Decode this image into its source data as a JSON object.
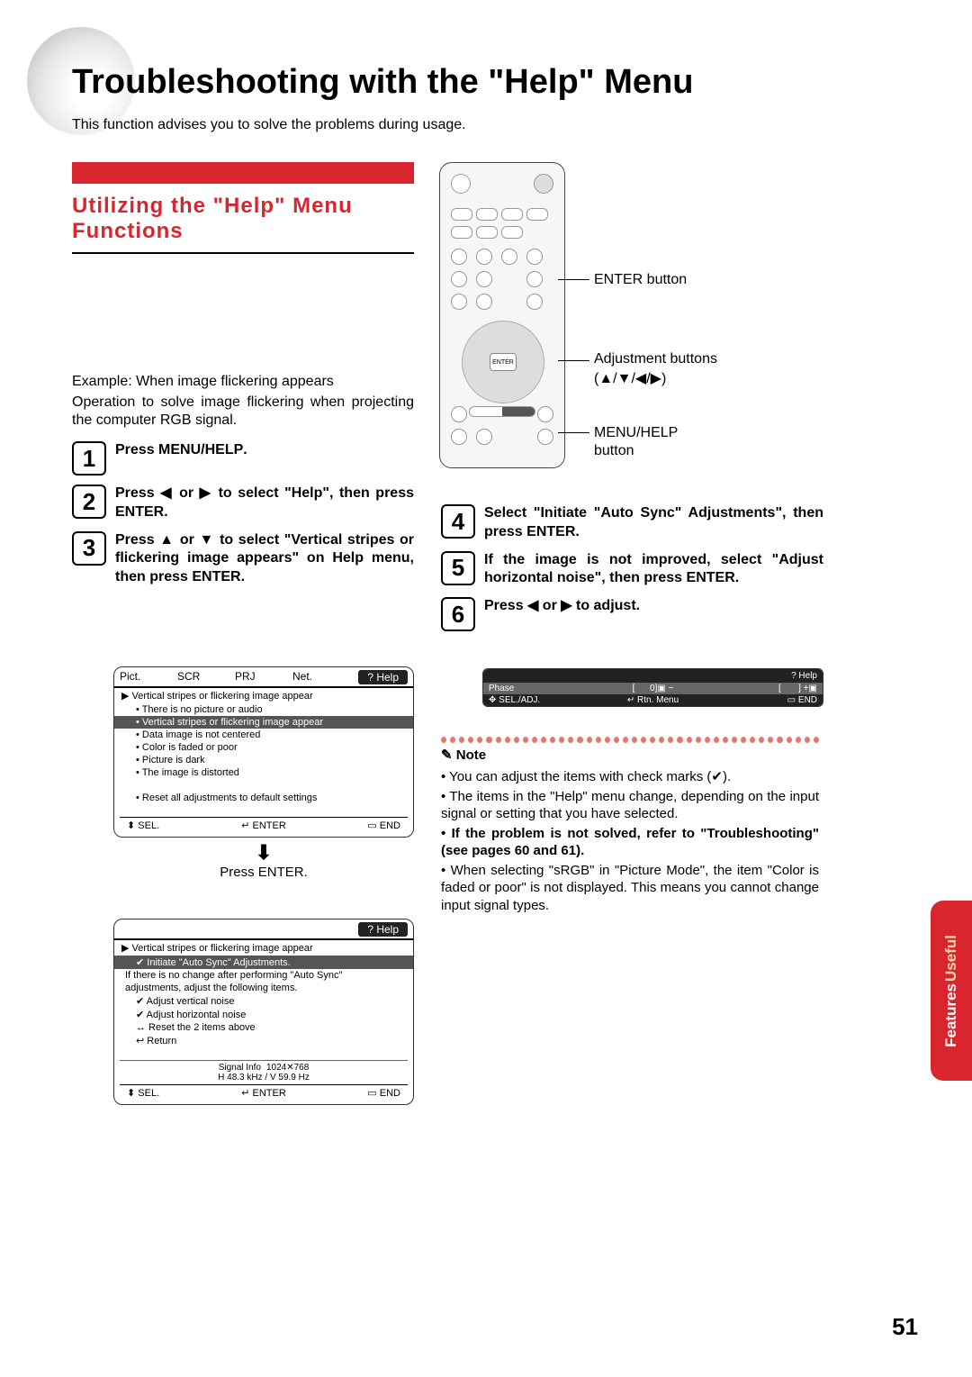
{
  "page": {
    "title": "Troubleshooting with the \"Help\" Menu",
    "intro": "This function advises you to solve the problems during usage.",
    "page_number": "51"
  },
  "colors": {
    "accent_red": "#d9262e",
    "dot": "#e07a70",
    "side_tab_bg": "#d9262e",
    "side_tab_useful": "#ffd9a8"
  },
  "section": {
    "heading": "Utilizing the \"Help\" Menu Functions"
  },
  "body": {
    "example_label": "Example: When image flickering appears",
    "operation_desc": "Operation to solve image flickering when projecting the computer RGB signal."
  },
  "steps_left": [
    {
      "num": "1",
      "html": "Press <b>MENU/HELP</b>."
    },
    {
      "num": "2",
      "html": "Press ◀ or ▶ to select \"Help\", then press <b>ENTER</b>."
    },
    {
      "num": "3",
      "html": "Press ▲ or ▼ to select \"Vertical stripes or flickering image appears\" on Help menu, then press <b>ENTER</b>."
    }
  ],
  "steps_right": [
    {
      "num": "4",
      "html": "Select \"Initiate \"Auto Sync\" Adjustments\", then press <b>ENTER</b>."
    },
    {
      "num": "5",
      "html": "If the image is not improved, select \"Adjust horizontal noise\", then press <b>ENTER</b>."
    },
    {
      "num": "6",
      "html": "Press ◀ or ▶ to adjust."
    }
  ],
  "callouts": {
    "enter": "ENTER button",
    "adjust": "Adjustment buttons",
    "adjust_sym": "(▲/▼/◀/▶)",
    "menu": "MENU/HELP",
    "button": "button",
    "press_enter": "Press ENTER."
  },
  "osd1": {
    "tabs": [
      "Pict.",
      "SCR",
      "PRJ",
      "Net."
    ],
    "help_tab": "Help",
    "title": "▶ Vertical stripes or flickering image appear",
    "items": [
      "• There is no picture or audio",
      "• Vertical stripes or flickering image appear",
      "• Data image is not centered",
      "• Color is faded or poor",
      "• Picture is dark",
      "• The image is distorted",
      "",
      "• Reset all adjustments to default settings"
    ],
    "selected_index": 1,
    "footer": [
      "⬍ SEL.",
      "↵ ENTER",
      "▭ END"
    ]
  },
  "osd2": {
    "help_tab": "Help",
    "title": "▶ Vertical stripes or flickering image appear",
    "items": [
      "✔ Initiate \"Auto Sync\" Adjustments.",
      "If there is no change after performing \"Auto Sync\"",
      "adjustments, adjust the following items.",
      "✔ Adjust vertical noise",
      "✔ Adjust horizontal noise",
      "↔ Reset the 2 items above",
      "↩ Return"
    ],
    "selected_index": 0,
    "signal": {
      "label": "Signal Info",
      "res": "1024✕768",
      "h": "H      48.3  kHz  /  V   59.9  Hz"
    },
    "footer": [
      "⬍ SEL.",
      "↵ ENTER",
      "▭ END"
    ]
  },
  "osd3": {
    "help_tab": "Help",
    "phase_label": "Phase",
    "phase_val": "0",
    "footer": [
      "✥ SEL./ADJ.",
      "↵ Rtn. Menu",
      "▭ END"
    ]
  },
  "notes": {
    "heading": "Note",
    "items": [
      {
        "html": "• You can adjust the items with check marks (✔).",
        "bold": false
      },
      {
        "html": "• The items in the \"Help\" menu change, depending on the input signal or setting that you have selected.",
        "bold": false
      },
      {
        "html": "• If the problem is not solved, refer to \"Troubleshooting\" (see pages 60 and 61).",
        "bold": true
      },
      {
        "html": "• When selecting \"sRGB\" in \"Picture Mode\", the item \"Color is faded or poor\" is not displayed. This means you cannot change input signal types.",
        "bold": false
      }
    ]
  },
  "side_tab": {
    "line1": "Useful",
    "line2": "Features"
  }
}
